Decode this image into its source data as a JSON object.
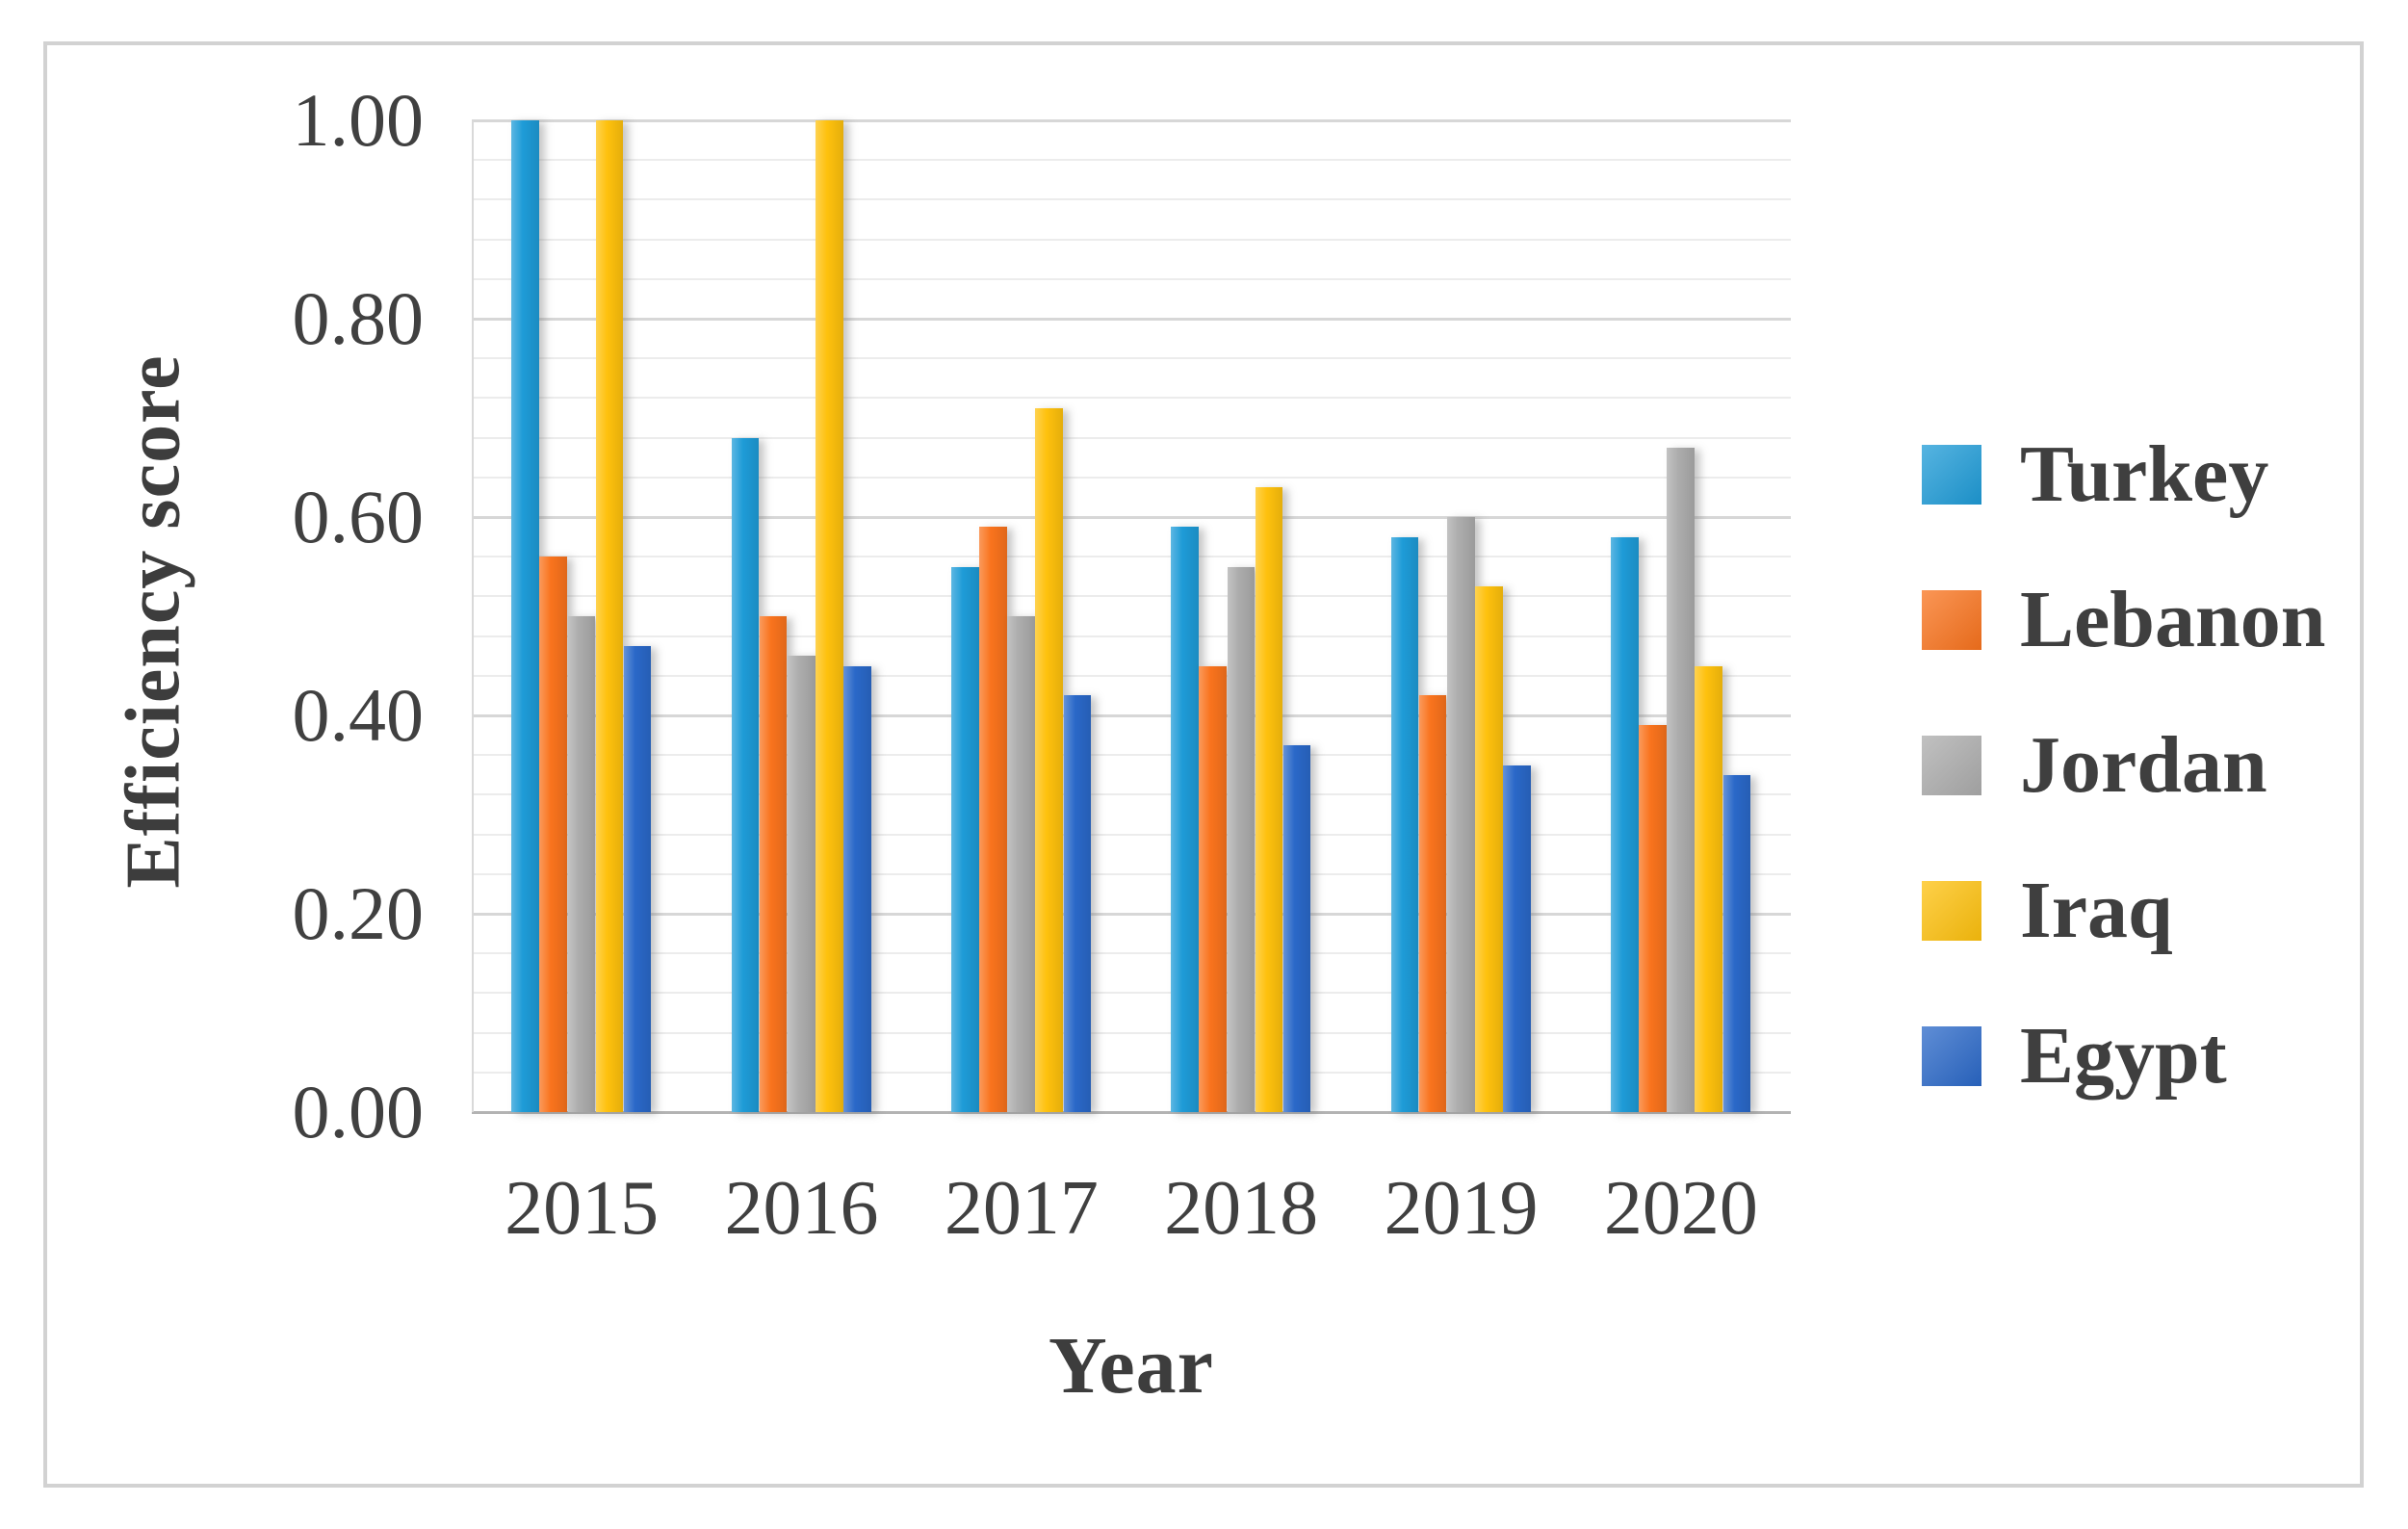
{
  "figure": {
    "border_color": "#d2d2d2",
    "background": "#ffffff",
    "text_color": "#3d3d3d"
  },
  "chart_data": {
    "type": "bar",
    "title": "",
    "xlabel": "Year",
    "ylabel": "Efficiency score",
    "categories": [
      "2015",
      "2016",
      "2017",
      "2018",
      "2019",
      "2020"
    ],
    "series": [
      {
        "name": "Turkey",
        "color": "#1E9BD7",
        "values": [
          1.0,
          0.68,
          0.55,
          0.59,
          0.58,
          0.58
        ]
      },
      {
        "name": "Lebanon",
        "color": "#F9731D",
        "values": [
          0.56,
          0.5,
          0.59,
          0.45,
          0.42,
          0.39
        ]
      },
      {
        "name": "Jordan",
        "color": "#ACACAC",
        "values": [
          0.5,
          0.46,
          0.5,
          0.55,
          0.6,
          0.67
        ]
      },
      {
        "name": "Iraq",
        "color": "#FEC10D",
        "values": [
          1.0,
          1.0,
          0.71,
          0.63,
          0.53,
          0.45
        ]
      },
      {
        "name": "Egypt",
        "color": "#2A68C8",
        "values": [
          0.47,
          0.45,
          0.42,
          0.37,
          0.35,
          0.34
        ]
      }
    ],
    "ylim": [
      0,
      1.0
    ],
    "y_major_step": 0.2,
    "y_minor_step": 0.04,
    "y_tick_labels": [
      "1.00",
      "0.80",
      "0.60",
      "0.40",
      "0.20",
      "0.00"
    ],
    "grid": true,
    "legend_position": "right",
    "gridline_minor_color": "#ececec",
    "gridline_major_color": "#d7d7d7",
    "axis_line_color": "#b3b3b3"
  }
}
